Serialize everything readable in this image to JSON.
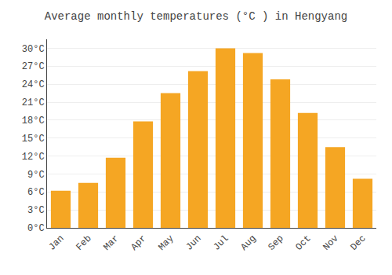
{
  "chart_data": {
    "type": "bar",
    "title": "Average monthly temperatures (°C ) in Hengyang",
    "categories": [
      "Jan",
      "Feb",
      "Mar",
      "Apr",
      "May",
      "Jun",
      "Jul",
      "Aug",
      "Sep",
      "Oct",
      "Nov",
      "Dec"
    ],
    "values": [
      6.2,
      7.5,
      11.7,
      17.8,
      22.5,
      26.2,
      30.0,
      29.2,
      24.8,
      19.2,
      13.5,
      8.2
    ],
    "color": "#F5A623",
    "ylim": [
      0,
      31.5
    ],
    "yticks": [
      {
        "value": 0,
        "label": "0°C"
      },
      {
        "value": 3,
        "label": "3°C"
      },
      {
        "value": 6,
        "label": "6°C"
      },
      {
        "value": 9,
        "label": "9°C"
      },
      {
        "value": 12,
        "label": "12°C"
      },
      {
        "value": 15,
        "label": "15°C"
      },
      {
        "value": 18,
        "label": "18°C"
      },
      {
        "value": 21,
        "label": "21°C"
      },
      {
        "value": 24,
        "label": "24°C"
      },
      {
        "value": 27,
        "label": "27°C"
      },
      {
        "value": 30,
        "label": "30°C"
      }
    ],
    "grid": true
  }
}
